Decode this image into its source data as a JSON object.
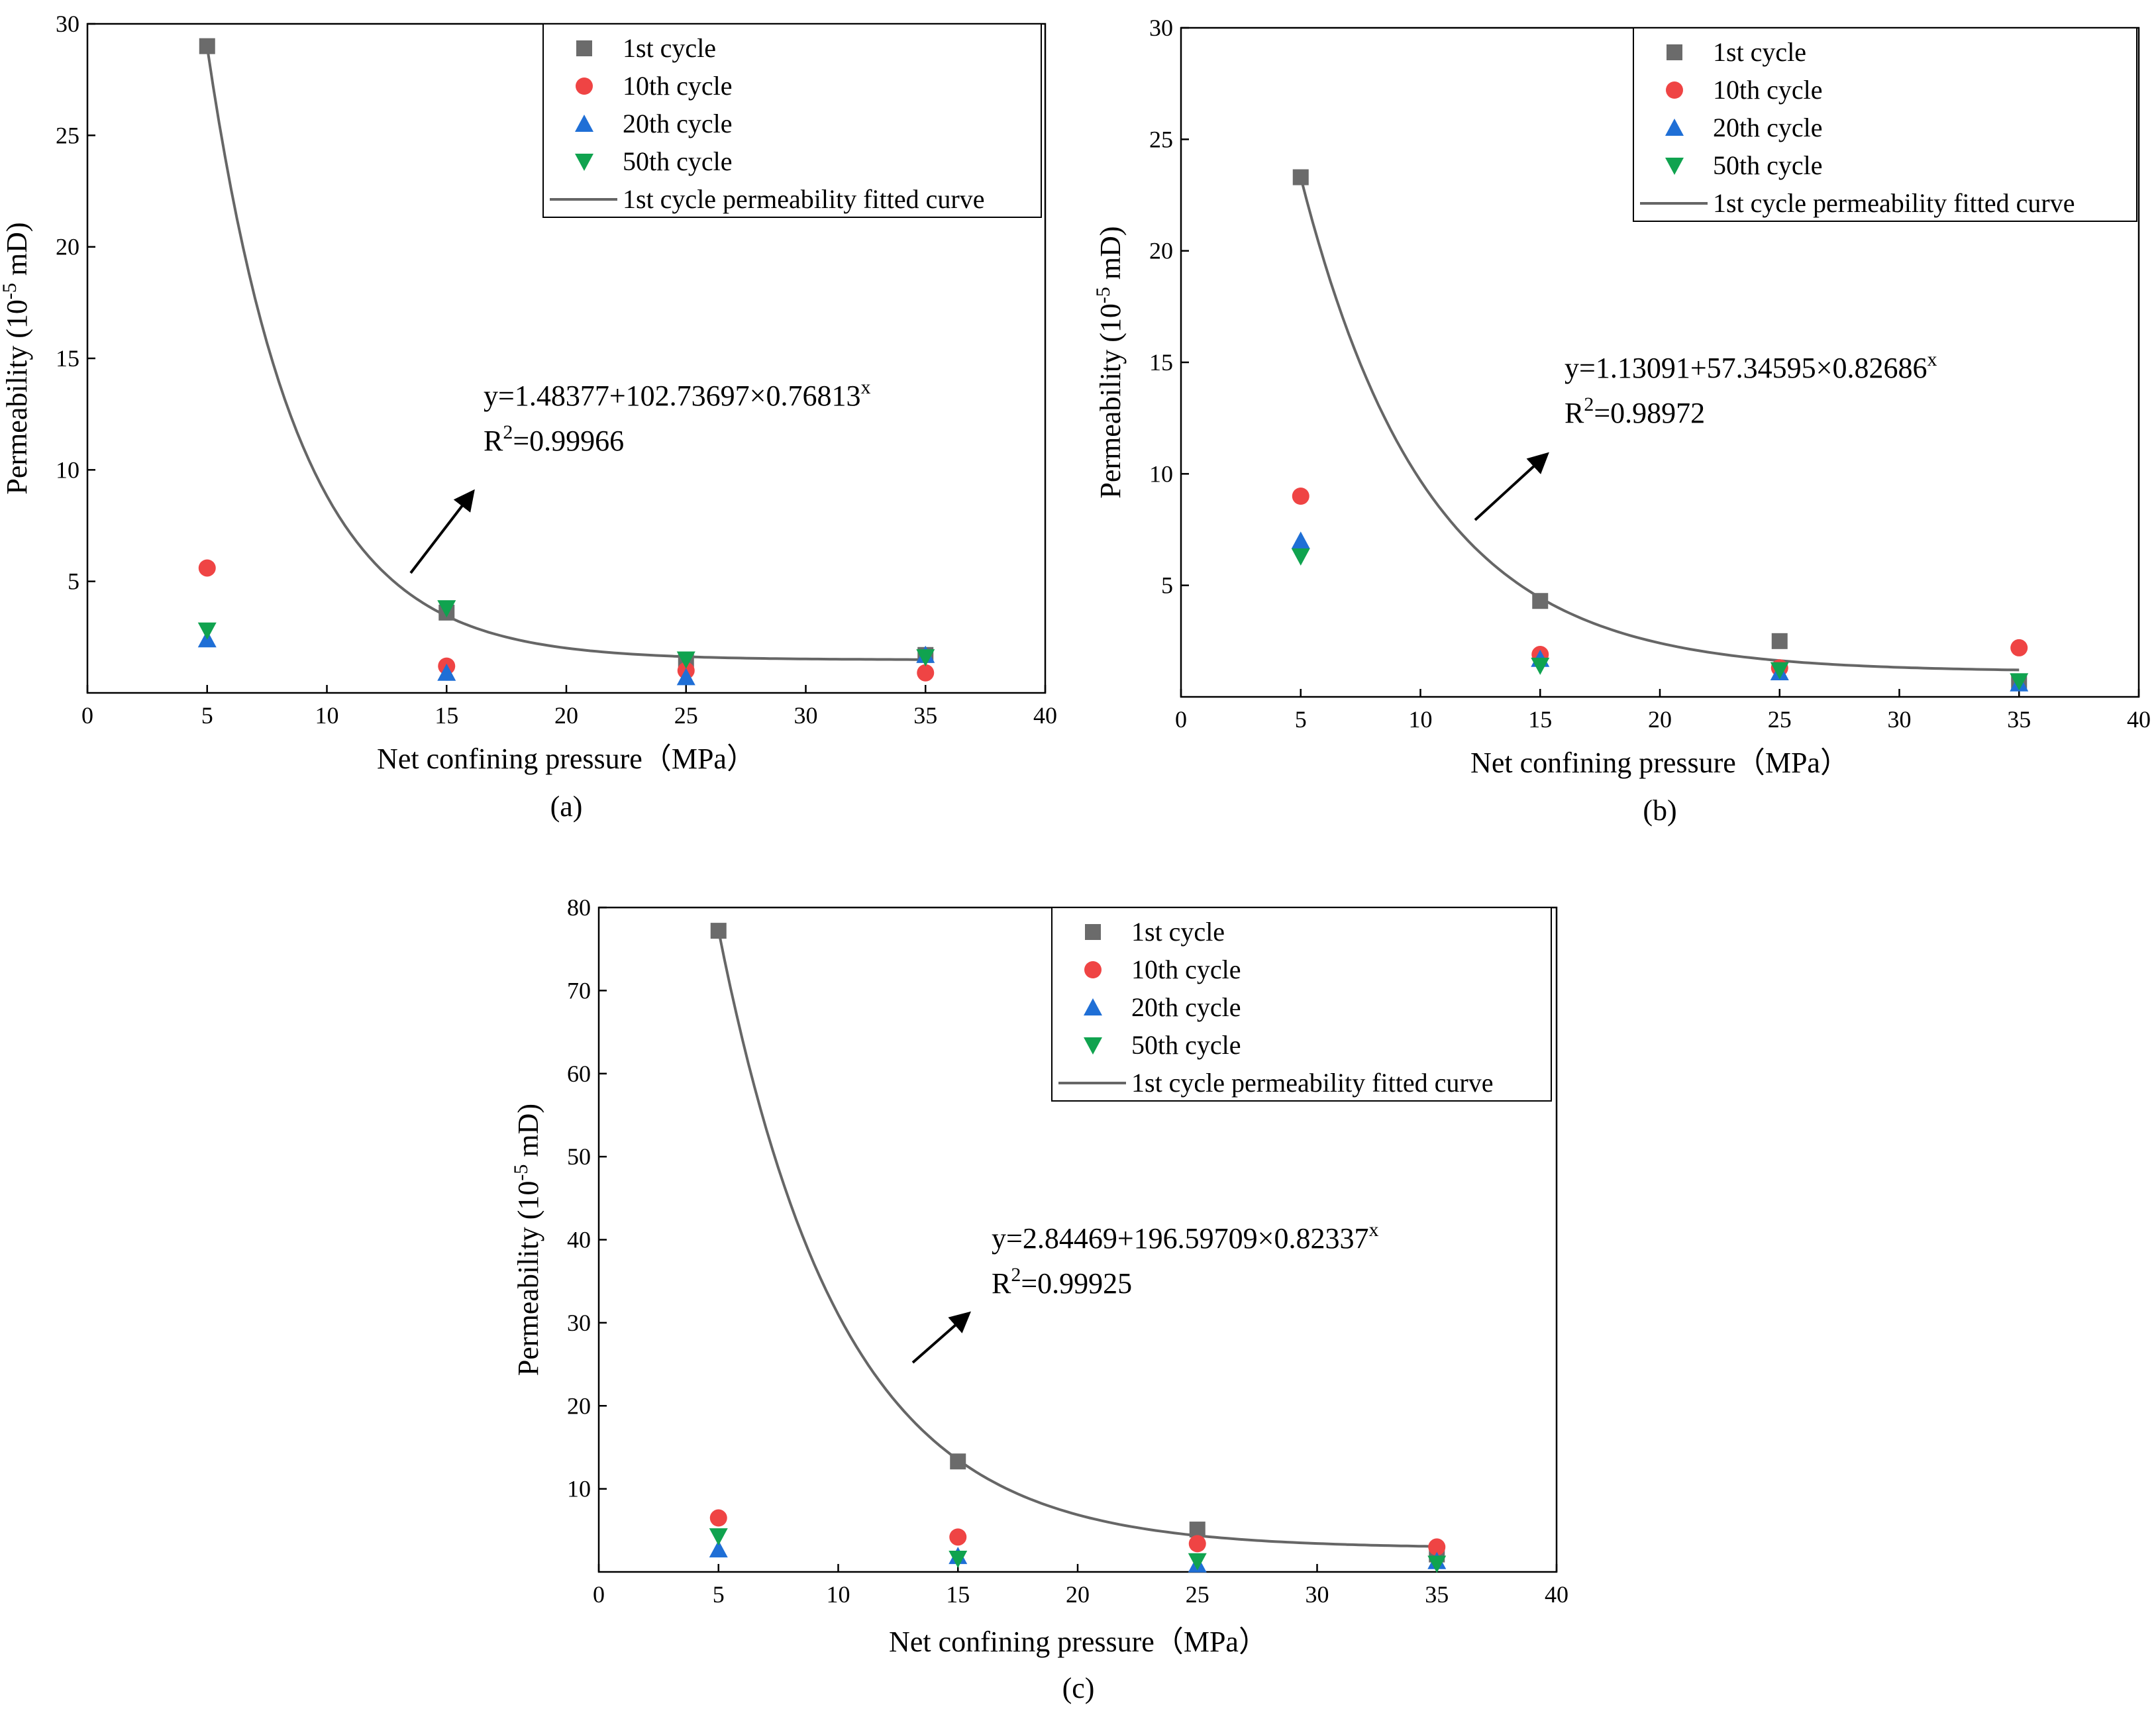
{
  "colors": {
    "first_cycle": "#6b6b6b",
    "tenth_cycle": "#ef4444",
    "twentieth_cycle": "#1f6fd6",
    "fiftieth_cycle": "#10a34f",
    "fit_curve": "#666666"
  },
  "chart_data": [
    {
      "type": "scatter",
      "panel": "(a)",
      "xlabel": "Net confining pressure（MPa）",
      "ylabel_main": "Permeability (10",
      "ylabel_sup": "-5",
      "ylabel_tail": " mD)",
      "xlim": [
        0,
        40
      ],
      "ylim": [
        0,
        30
      ],
      "xticks": [
        0,
        5,
        10,
        15,
        20,
        25,
        30,
        35,
        40
      ],
      "yticks": [
        5,
        10,
        15,
        20,
        25,
        30
      ],
      "series": [
        {
          "name": "1st cycle",
          "marker": "square",
          "x": [
            5,
            15,
            25,
            35
          ],
          "y": [
            29.0,
            3.6,
            1.5,
            1.7
          ]
        },
        {
          "name": "10th cycle",
          "marker": "circle",
          "x": [
            5,
            15,
            25,
            35
          ],
          "y": [
            5.6,
            1.2,
            1.0,
            0.9
          ]
        },
        {
          "name": "20th cycle",
          "marker": "triangle-up",
          "x": [
            5,
            15,
            25,
            35
          ],
          "y": [
            2.4,
            0.9,
            0.7,
            1.7
          ]
        },
        {
          "name": "50th cycle",
          "marker": "triangle-down",
          "x": [
            5,
            15,
            25,
            35
          ],
          "y": [
            2.8,
            3.8,
            1.5,
            1.6
          ]
        }
      ],
      "fit": {
        "name": "1st cycle permeability fitted curve",
        "a": 1.48377,
        "b": 102.73697,
        "c": 0.76813,
        "x_range": [
          5,
          35
        ]
      },
      "equation": "y=1.48377+102.73697×0.76813",
      "equation_sup": "x",
      "r2_prefix": "R",
      "r2_sup": "2",
      "r2_value": "=0.99966",
      "legend_position": "top-right"
    },
    {
      "type": "scatter",
      "panel": "(b)",
      "xlabel": "Net confining pressure（MPa）",
      "ylabel_main": "Permeability (10",
      "ylabel_sup": "-5",
      "ylabel_tail": " mD)",
      "xlim": [
        0,
        40
      ],
      "ylim": [
        0,
        30
      ],
      "xticks": [
        0,
        5,
        10,
        15,
        20,
        25,
        30,
        35,
        40
      ],
      "yticks": [
        5,
        10,
        15,
        20,
        25,
        30
      ],
      "series": [
        {
          "name": "1st cycle",
          "marker": "square",
          "x": [
            5,
            15,
            25,
            35
          ],
          "y": [
            23.3,
            4.3,
            2.5,
            0.7
          ]
        },
        {
          "name": "10th cycle",
          "marker": "circle",
          "x": [
            5,
            15,
            25,
            35
          ],
          "y": [
            9.0,
            1.9,
            1.3,
            2.2
          ]
        },
        {
          "name": "20th cycle",
          "marker": "triangle-up",
          "x": [
            5,
            15,
            25,
            35
          ],
          "y": [
            7.0,
            1.7,
            1.1,
            0.6
          ]
        },
        {
          "name": "50th cycle",
          "marker": "triangle-down",
          "x": [
            5,
            15,
            25,
            35
          ],
          "y": [
            6.3,
            1.4,
            1.2,
            0.7
          ]
        }
      ],
      "fit": {
        "name": "1st cycle permeability fitted curve",
        "a": 1.13091,
        "b": 57.34595,
        "c": 0.82686,
        "x_range": [
          5,
          35
        ]
      },
      "equation": "y=1.13091+57.34595×0.82686",
      "equation_sup": "x",
      "r2_prefix": "R",
      "r2_sup": "2",
      "r2_value": "=0.98972",
      "legend_position": "top-right"
    },
    {
      "type": "scatter",
      "panel": "(c)",
      "xlabel": "Net confining pressure（MPa）",
      "ylabel_main": "Permeability (10",
      "ylabel_sup": "-5",
      "ylabel_tail": " mD)",
      "xlim": [
        0,
        40
      ],
      "ylim": [
        0,
        80
      ],
      "xticks": [
        0,
        5,
        10,
        15,
        20,
        25,
        30,
        35,
        40
      ],
      "yticks": [
        10,
        20,
        30,
        40,
        50,
        60,
        70,
        80
      ],
      "series": [
        {
          "name": "1st cycle",
          "marker": "square",
          "x": [
            5,
            15,
            25,
            35
          ],
          "y": [
            77.2,
            13.3,
            5.1,
            2.1
          ]
        },
        {
          "name": "10th cycle",
          "marker": "circle",
          "x": [
            5,
            15,
            25,
            35
          ],
          "y": [
            6.5,
            4.2,
            3.4,
            3.0
          ]
        },
        {
          "name": "20th cycle",
          "marker": "triangle-up",
          "x": [
            5,
            15,
            25,
            35
          ],
          "y": [
            2.7,
            1.9,
            0.9,
            1.3
          ]
        },
        {
          "name": "50th cycle",
          "marker": "triangle-down",
          "x": [
            5,
            15,
            25,
            35
          ],
          "y": [
            4.3,
            1.6,
            1.3,
            1.0
          ]
        }
      ],
      "fit": {
        "name": "1st cycle permeability fitted curve",
        "a": 2.84469,
        "b": 196.59709,
        "c": 0.82337,
        "x_range": [
          5,
          35
        ]
      },
      "equation": "y=2.84469+196.59709×0.82337",
      "equation_sup": "x",
      "r2_prefix": "R",
      "r2_sup": "2",
      "r2_value": "=0.99925",
      "legend_position": "top-right"
    }
  ]
}
